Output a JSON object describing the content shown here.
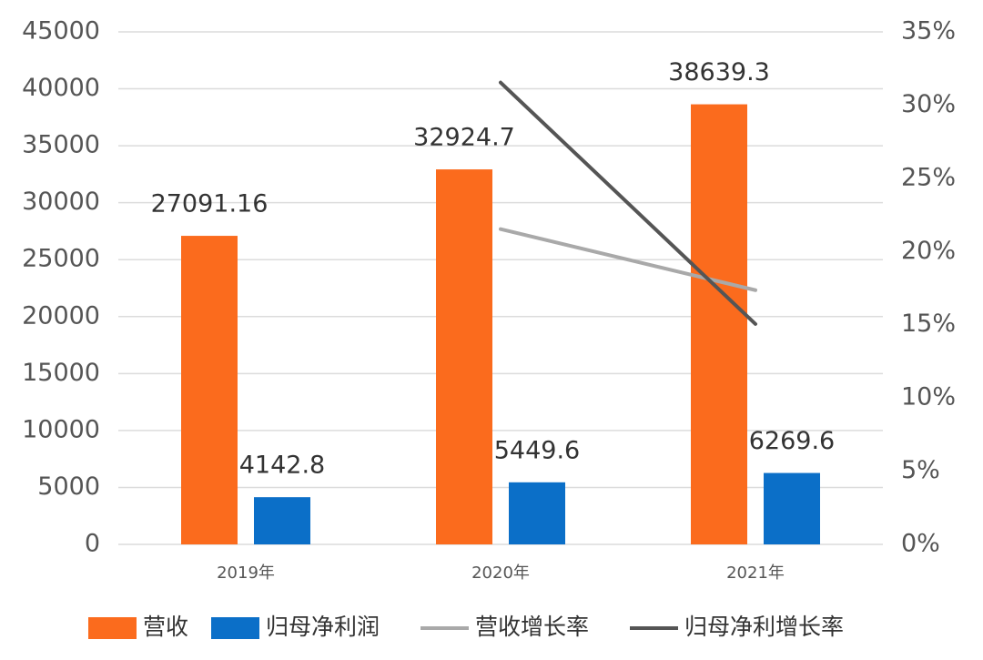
{
  "chart_data": {
    "type": "bar",
    "categories": [
      "2019年",
      "2020年",
      "2021年"
    ],
    "ylim": [
      0,
      45000
    ],
    "yticks": [
      0,
      5000,
      10000,
      15000,
      20000,
      25000,
      30000,
      35000,
      40000,
      45000
    ],
    "y2lim": [
      0,
      35
    ],
    "y2ticks": [
      {
        "value": 0,
        "label": "0%"
      },
      {
        "value": 5,
        "label": "5%"
      },
      {
        "value": 10,
        "label": "10%"
      },
      {
        "value": 15,
        "label": "15%"
      },
      {
        "value": 20,
        "label": "20%"
      },
      {
        "value": 25,
        "label": "25%"
      },
      {
        "value": 30,
        "label": "30%"
      },
      {
        "value": 35,
        "label": "35%"
      }
    ],
    "grid": true,
    "series": [
      {
        "name": "营收",
        "type": "bar",
        "color": "#fb6b1d",
        "values": [
          27091.16,
          32924.7,
          38639.3
        ]
      },
      {
        "name": "归母净利润",
        "type": "bar",
        "color": "#0b6fc8",
        "values": [
          4142.8,
          5449.6,
          6269.6
        ]
      },
      {
        "name": "营收增长率",
        "type": "line",
        "axis": "y2",
        "color": "#a9a9a9",
        "values": [
          null,
          21.53,
          17.36
        ]
      },
      {
        "name": "归母净利增长率",
        "type": "line",
        "axis": "y2",
        "color": "#555555",
        "values": [
          null,
          31.54,
          15.05
        ]
      }
    ]
  }
}
